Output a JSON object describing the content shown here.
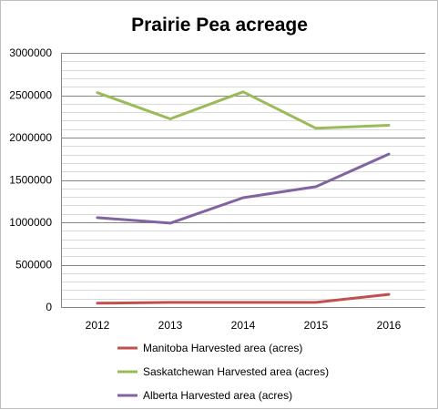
{
  "chart_data": {
    "type": "line",
    "title": "Prairie Pea acreage",
    "xlabel": "",
    "ylabel": "",
    "categories": [
      "2012",
      "2013",
      "2014",
      "2015",
      "2016"
    ],
    "ylim": [
      0,
      3000000
    ],
    "y_ticks": [
      "0",
      "500000",
      "1000000",
      "1500000",
      "2000000",
      "2500000",
      "3000000"
    ],
    "grid": true,
    "legend_position": "bottom",
    "series": [
      {
        "name": "Manitoba Harvested area (acres)",
        "color": "#c0504d",
        "values": [
          45000,
          55000,
          55000,
          55000,
          150000
        ]
      },
      {
        "name": "Saskatchewan Harvested area (acres)",
        "color": "#9bbb59",
        "values": [
          2530000,
          2220000,
          2540000,
          2110000,
          2145000
        ]
      },
      {
        "name": "Alberta Harvested area (acres)",
        "color": "#8064a2",
        "values": [
          1055000,
          990000,
          1290000,
          1420000,
          1805000
        ]
      }
    ]
  }
}
